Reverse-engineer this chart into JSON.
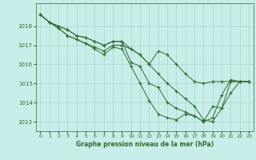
{
  "background_color": "#c8ede8",
  "grid_color": "#a8d4ce",
  "line_color": "#2d6b2d",
  "xlabel": "Graphe pression niveau de la mer (hPa)",
  "xlim": [
    -0.5,
    23.5
  ],
  "ylim": [
    1012.5,
    1019.2
  ],
  "yticks": [
    1013,
    1014,
    1015,
    1016,
    1017,
    1018
  ],
  "xticks": [
    0,
    1,
    2,
    3,
    4,
    5,
    6,
    7,
    8,
    9,
    10,
    11,
    12,
    13,
    14,
    15,
    16,
    17,
    18,
    19,
    20,
    21,
    22,
    23
  ],
  "series": [
    [
      1018.6,
      1018.2,
      1018.0,
      1017.8,
      1017.5,
      1017.4,
      1017.2,
      1017.0,
      1017.2,
      1017.2,
      1016.8,
      1016.5,
      1016.0,
      1016.7,
      1016.5,
      1016.0,
      1015.5,
      1015.1,
      1015.0,
      1015.1,
      1015.1,
      1015.1,
      1015.1,
      1015.1
    ],
    [
      1018.6,
      1018.2,
      1018.0,
      1017.8,
      1017.5,
      1017.4,
      1017.2,
      1017.0,
      1017.2,
      1017.2,
      1016.1,
      1015.9,
      1015.0,
      1014.8,
      1014.0,
      1013.7,
      1013.5,
      1013.3,
      1013.0,
      1013.8,
      1013.7,
      1015.1,
      1015.1,
      1015.1
    ],
    [
      1018.6,
      1018.2,
      1017.9,
      1017.5,
      1017.3,
      1017.1,
      1016.9,
      1016.7,
      1017.0,
      1017.0,
      1016.8,
      1016.5,
      1016.0,
      1015.5,
      1015.0,
      1014.6,
      1014.2,
      1013.8,
      1013.1,
      1013.0,
      1013.7,
      1014.5,
      1015.1,
      1015.1
    ],
    [
      1018.6,
      1018.2,
      1017.9,
      1017.5,
      1017.3,
      1017.1,
      1016.8,
      1016.5,
      1016.9,
      1016.8,
      1015.9,
      1015.0,
      1014.1,
      1013.4,
      1013.2,
      1013.1,
      1013.4,
      1013.3,
      1013.0,
      1013.2,
      1014.4,
      1015.2,
      1015.1,
      1015.1
    ]
  ]
}
